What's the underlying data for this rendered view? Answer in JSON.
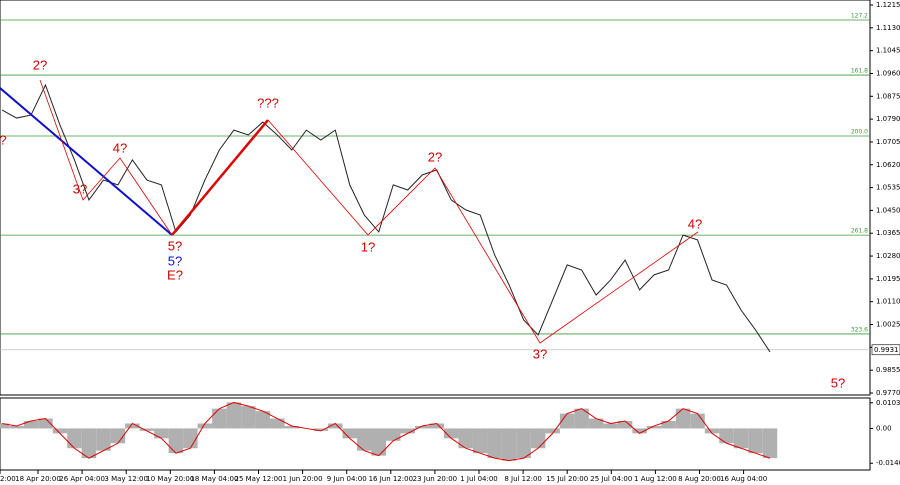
{
  "chart_data": [
    {
      "type": "line",
      "color": "#222222",
      "ylim": [
        0.977,
        1.1215
      ],
      "yticks": [
        {
          "value": 1.1215,
          "label": "1.1215"
        },
        {
          "value": 1.113,
          "label": "1.1130"
        },
        {
          "value": 1.1045,
          "label": "1.1045"
        },
        {
          "value": 1.096,
          "label": "1.0960"
        },
        {
          "value": 1.0875,
          "label": "1.0875"
        },
        {
          "value": 1.079,
          "label": "1.0790"
        },
        {
          "value": 1.0705,
          "label": "1.0705"
        },
        {
          "value": 1.062,
          "label": "1.0620"
        },
        {
          "value": 1.0535,
          "label": "1.0535"
        },
        {
          "value": 1.045,
          "label": "1.0450"
        },
        {
          "value": 1.0365,
          "label": "1.0365"
        },
        {
          "value": 1.028,
          "label": "1.0280"
        },
        {
          "value": 1.0195,
          "label": "1.0195"
        },
        {
          "value": 1.011,
          "label": "1.0110"
        },
        {
          "value": 1.0025,
          "label": "1.0025"
        },
        {
          "value": 0.994,
          "label": "0.9940"
        },
        {
          "value": 0.9855,
          "label": "0.9855"
        },
        {
          "value": 0.977,
          "label": "0.9770"
        }
      ],
      "values": [
        1.0824,
        1.0794,
        1.0805,
        1.0917,
        1.0768,
        1.0638,
        1.0489,
        1.0563,
        1.0545,
        1.0638,
        1.0563,
        1.0545,
        1.037,
        1.0433,
        1.0563,
        1.0675,
        1.0749,
        1.0731,
        1.0779,
        1.0731,
        1.0675,
        1.0749,
        1.0712,
        1.0749,
        1.0545,
        1.0433,
        1.037,
        1.0545,
        1.0526,
        1.0582,
        1.0601,
        1.0489,
        1.0452,
        1.0433,
        1.0284,
        1.0172,
        1.0042,
        0.9986,
        1.0116,
        1.0247,
        1.0228,
        1.0135,
        1.0191,
        1.0265,
        1.0154,
        1.021,
        1.0228,
        1.0358,
        1.034,
        1.0191,
        1.0172,
        1.0079,
        1.0005,
        0.9923
      ],
      "levels": [
        {
          "value": 1.1159,
          "label": "127.2"
        },
        {
          "value": 1.0954,
          "label": "161.8"
        },
        {
          "value": 1.0727,
          "label": "200.0"
        },
        {
          "value": 1.0358,
          "label": "261.8"
        },
        {
          "value": 0.999,
          "label": "323.6"
        }
      ],
      "level_color": "#3a9a3a",
      "current_price": {
        "value": 0.9931,
        "label": "0.9931"
      },
      "annotations": [
        "?",
        "2?",
        "4?",
        "3?",
        "5?",
        "5?",
        "E?",
        "???",
        "1?",
        "2?",
        "3?",
        "4?",
        "5?"
      ]
    },
    {
      "type": "bar",
      "color": "#b0b0b0",
      "line_color": "#e00000",
      "ylim": [
        -0.0168,
        0.0123
      ],
      "yticks": [
        {
          "value": 0.01037,
          "label": "0.01037"
        },
        {
          "value": 0,
          "label": "0.00"
        },
        {
          "value": -0.01407,
          "label": "-0.01407"
        }
      ],
      "values": [
        0.002,
        0.001,
        0.003,
        0.004,
        -0.002,
        -0.008,
        -0.012,
        -0.009,
        -0.006,
        0.002,
        -0.001,
        -0.004,
        -0.01,
        -0.008,
        0.002,
        0.008,
        0.0105,
        0.009,
        0.007,
        0.004,
        0.001,
        0.0,
        -0.001,
        0.002,
        -0.004,
        -0.009,
        -0.011,
        -0.005,
        -0.002,
        0.001,
        0.002,
        -0.004,
        -0.008,
        -0.01,
        -0.012,
        -0.013,
        -0.012,
        -0.008,
        -0.002,
        0.006,
        0.008,
        0.004,
        0.002,
        0.003,
        -0.002,
        0.001,
        0.003,
        0.008,
        0.006,
        -0.002,
        -0.006,
        -0.008,
        -0.01,
        -0.012
      ],
      "xticks": [
        "2:00",
        "18 Apr 20:00",
        "26 Apr 04:00",
        "3 May 12:00",
        "10 May 20:00",
        "18 May 04:00",
        "25 May 12:00",
        "1 Jun 20:00",
        "9 Jun 04:00",
        "16 Jun 12:00",
        "23 Jun 20:00",
        "1 Jul 04:00",
        "8 Jul 12:00",
        "15 Jul 20:00",
        "25 Jul 04:00",
        "1 Aug 12:00",
        "8 Aug 20:00",
        "16 Aug 04:00"
      ]
    }
  ]
}
